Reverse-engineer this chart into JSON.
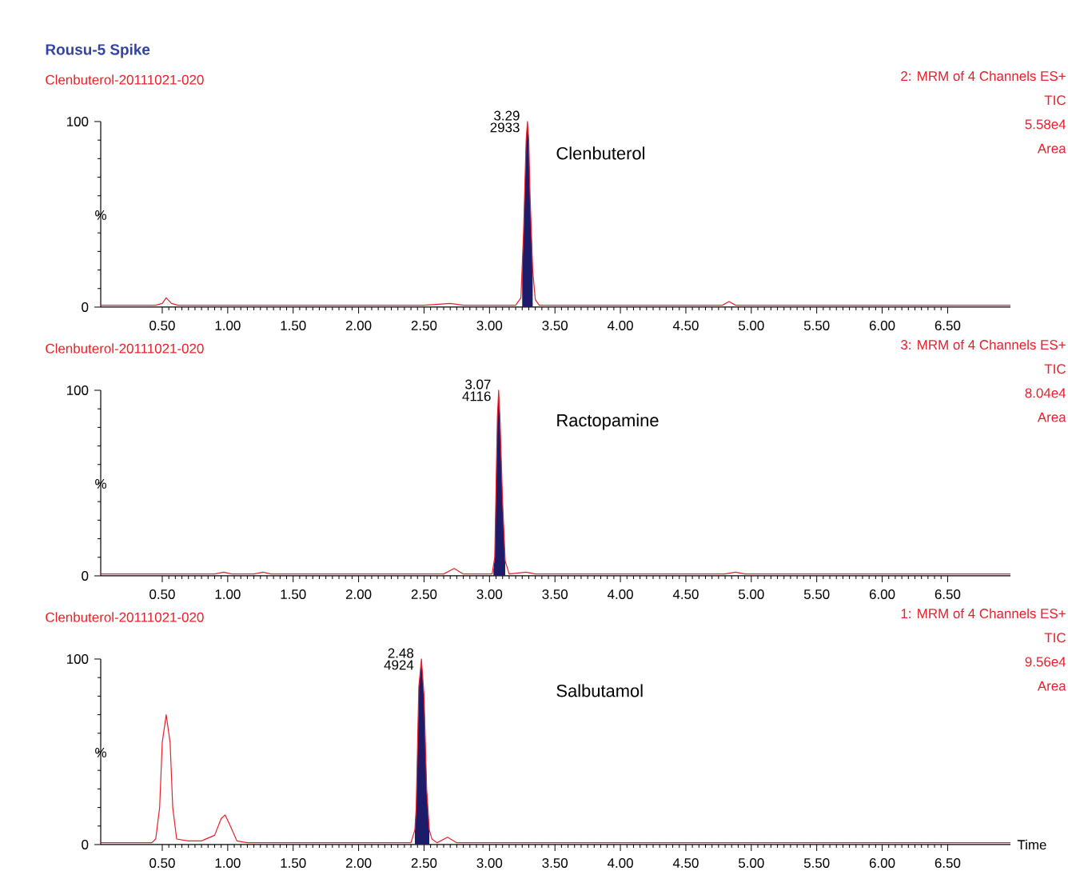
{
  "chart_data": [
    {
      "type": "line",
      "title": "Rousu-5 Spike",
      "ylabel": "%",
      "xlim": [
        0.03,
        6.98
      ],
      "ylim": [
        0,
        100
      ],
      "xticks": [
        {
          "value": 0.5,
          "label": "0.50"
        },
        {
          "value": 1.0,
          "label": "1.00"
        },
        {
          "value": 1.5,
          "label": "1.50"
        },
        {
          "value": 2.0,
          "label": "2.00"
        },
        {
          "value": 2.5,
          "label": "2.50"
        },
        {
          "value": 3.0,
          "label": "3.00"
        },
        {
          "value": 3.5,
          "label": "3.50"
        },
        {
          "value": 4.0,
          "label": "4.00"
        },
        {
          "value": 4.5,
          "label": "4.50"
        },
        {
          "value": 5.0,
          "label": "5.00"
        },
        {
          "value": 5.5,
          "label": "5.50"
        },
        {
          "value": 6.0,
          "label": "6.00"
        },
        {
          "value": 6.5,
          "label": "6.50"
        }
      ],
      "yticks": [
        0,
        100
      ],
      "series": [
        {
          "type": "area",
          "color": "#1c1c6b",
          "x": [
            3.25,
            3.26,
            3.28,
            3.29,
            3.3,
            3.31,
            3.33
          ],
          "values": [
            20,
            40,
            90,
            100,
            90,
            60,
            20
          ]
        },
        {
          "color": "#e8202a",
          "x": [
            0.03,
            0.45,
            0.5,
            0.53,
            0.57,
            0.62,
            1.0,
            1.5,
            2.0,
            2.5,
            2.7,
            2.8,
            3.0,
            3.2,
            3.24,
            3.26,
            3.28,
            3.29,
            3.3,
            3.31,
            3.33,
            3.35,
            3.38,
            3.5,
            4.0,
            4.5,
            4.78,
            4.83,
            4.88,
            5.5,
            6.0,
            6.5,
            6.98
          ],
          "values": [
            1,
            1,
            2,
            5,
            2,
            1,
            1,
            1,
            1,
            1,
            2,
            1,
            1,
            1,
            5,
            40,
            90,
            100,
            90,
            60,
            20,
            4,
            1,
            1,
            1,
            1,
            1,
            3,
            1,
            1,
            1,
            1,
            1
          ]
        }
      ],
      "annotations": [
        "Clenbuterol-20111021-020",
        "2: MRM of 4 Channels ES+",
        "TIC",
        "5.58e4",
        "Area",
        "Clenbuterol",
        {
          "text": "3.29",
          "x": 3.29,
          "y": 100
        },
        {
          "text": "2933",
          "x": 3.29,
          "y": 100
        }
      ]
    },
    {
      "type": "line",
      "ylabel": "%",
      "xlim": [
        0.03,
        6.98
      ],
      "ylim": [
        0,
        100
      ],
      "xticks": [
        {
          "value": 0.5,
          "label": "0.50"
        },
        {
          "value": 1.0,
          "label": "1.00"
        },
        {
          "value": 1.5,
          "label": "1.50"
        },
        {
          "value": 2.0,
          "label": "2.00"
        },
        {
          "value": 2.5,
          "label": "2.50"
        },
        {
          "value": 3.0,
          "label": "3.00"
        },
        {
          "value": 3.5,
          "label": "3.50"
        },
        {
          "value": 4.0,
          "label": "4.00"
        },
        {
          "value": 4.5,
          "label": "4.50"
        },
        {
          "value": 5.0,
          "label": "5.00"
        },
        {
          "value": 5.5,
          "label": "5.50"
        },
        {
          "value": 6.0,
          "label": "6.00"
        },
        {
          "value": 6.5,
          "label": "6.50"
        }
      ],
      "yticks": [
        0,
        100
      ],
      "series": [
        {
          "type": "area",
          "color": "#1c1c6b",
          "x": [
            3.03,
            3.04,
            3.06,
            3.07,
            3.08,
            3.1,
            3.12
          ],
          "values": [
            3,
            10,
            85,
            100,
            85,
            40,
            8
          ]
        },
        {
          "color": "#e8202a",
          "x": [
            0.03,
            0.9,
            0.97,
            1.03,
            1.2,
            1.27,
            1.33,
            2.0,
            2.65,
            2.73,
            2.8,
            3.0,
            3.02,
            3.04,
            3.06,
            3.07,
            3.08,
            3.1,
            3.12,
            3.15,
            3.28,
            3.35,
            4.0,
            4.8,
            4.88,
            4.95,
            5.5,
            6.98
          ],
          "values": [
            1,
            1,
            2,
            1,
            1,
            2,
            1,
            1,
            1,
            4,
            1,
            1,
            1,
            10,
            85,
            100,
            85,
            40,
            8,
            1,
            2,
            1,
            1,
            1,
            2,
            1,
            1,
            1
          ]
        }
      ],
      "annotations": [
        "Clenbuterol-20111021-020",
        "3: MRM of 4 Channels ES+",
        "TIC",
        "8.04e4",
        "Area",
        "Ractopamine",
        {
          "text": "3.07",
          "x": 3.07,
          "y": 100
        },
        {
          "text": "4116",
          "x": 3.07,
          "y": 100
        }
      ]
    },
    {
      "type": "line",
      "xlabel": "Time",
      "ylabel": "%",
      "xlim": [
        0.03,
        6.98
      ],
      "ylim": [
        0,
        100
      ],
      "xticks": [
        {
          "value": 0.5,
          "label": "0.50"
        },
        {
          "value": 1.0,
          "label": "1.00"
        },
        {
          "value": 1.5,
          "label": "1.50"
        },
        {
          "value": 2.0,
          "label": "2.00"
        },
        {
          "value": 2.5,
          "label": "2.50"
        },
        {
          "value": 3.0,
          "label": "3.00"
        },
        {
          "value": 3.5,
          "label": "3.50"
        },
        {
          "value": 4.0,
          "label": "4.00"
        },
        {
          "value": 4.5,
          "label": "4.50"
        },
        {
          "value": 5.0,
          "label": "5.00"
        },
        {
          "value": 5.5,
          "label": "5.50"
        },
        {
          "value": 6.0,
          "label": "6.00"
        },
        {
          "value": 6.5,
          "label": "6.50"
        }
      ],
      "yticks": [
        0,
        100
      ],
      "series": [
        {
          "type": "area",
          "color": "#1c1c6b",
          "x": [
            2.43,
            2.44,
            2.46,
            2.48,
            2.5,
            2.52,
            2.54
          ],
          "values": [
            8,
            20,
            85,
            100,
            80,
            30,
            8
          ]
        },
        {
          "color": "#e8202a",
          "x": [
            0.03,
            0.42,
            0.45,
            0.48,
            0.5,
            0.53,
            0.56,
            0.58,
            0.61,
            0.7,
            0.8,
            0.9,
            0.95,
            0.98,
            1.02,
            1.07,
            1.15,
            1.3,
            2.0,
            2.4,
            2.43,
            2.44,
            2.46,
            2.48,
            2.5,
            2.52,
            2.54,
            2.56,
            2.6,
            2.68,
            2.75,
            3.0,
            3.1,
            3.5,
            4.5,
            5.65,
            6.98
          ],
          "values": [
            1,
            1,
            3,
            20,
            55,
            70,
            55,
            20,
            3,
            2,
            2,
            5,
            14,
            16,
            10,
            2,
            1,
            1,
            1,
            1,
            8,
            20,
            85,
            100,
            80,
            30,
            8,
            3,
            1,
            4,
            1,
            1,
            1,
            1,
            1,
            1,
            1
          ]
        }
      ],
      "annotations": [
        "Clenbuterol-20111021-020",
        "1: MRM of 4 Channels ES+",
        "TIC",
        "9.56e4",
        "Area",
        "Salbutamol",
        {
          "text": "2.48",
          "x": 2.48,
          "y": 100
        },
        {
          "text": "4924",
          "x": 2.48,
          "y": 100
        }
      ]
    }
  ]
}
